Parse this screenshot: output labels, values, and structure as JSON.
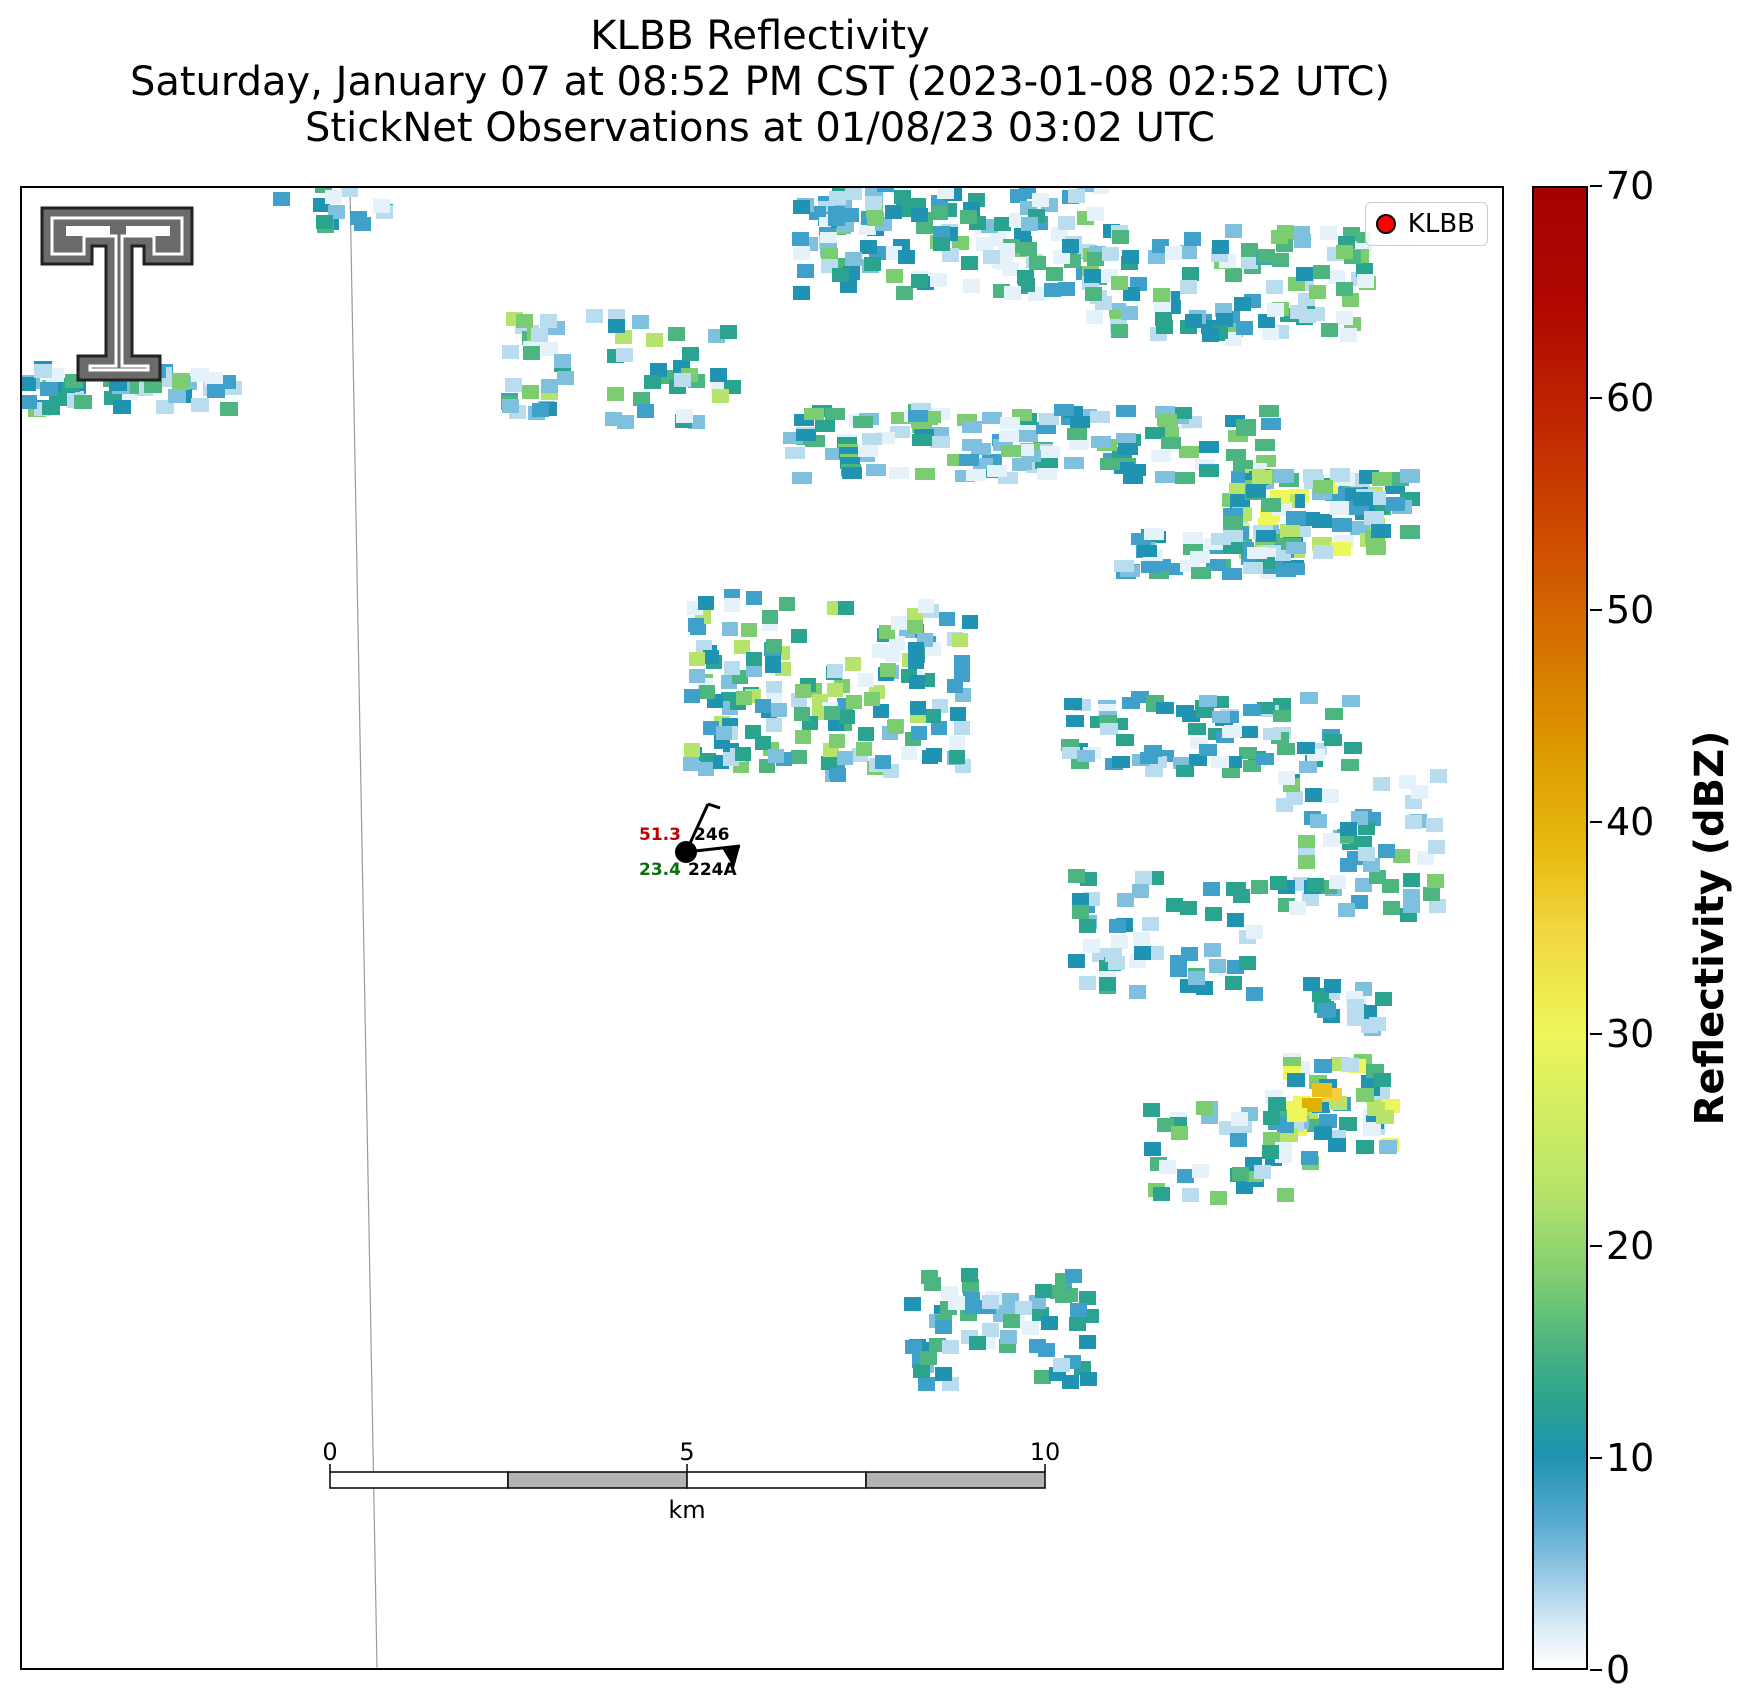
{
  "titles": {
    "line1": "KLBB Reflectivity",
    "line2": "Saturday, January 07 at 08:52 PM CST (2023-01-08 02:52 UTC)",
    "line3": "StickNet Observations at 01/08/23 03:02 UTC"
  },
  "legend": {
    "label": "KLBB",
    "marker_color": "#ff0000"
  },
  "colorbar": {
    "label": "Reflectivity (dBZ)",
    "min": 0,
    "max": 70,
    "ticks": [
      "0",
      "10",
      "20",
      "30",
      "40",
      "50",
      "60",
      "70"
    ]
  },
  "scalebar": {
    "labels": [
      "0",
      "5",
      "10"
    ],
    "unit": "km"
  },
  "station": {
    "id": "224A",
    "temperature": "51.3",
    "dewpoint": "23.4",
    "pressure": "246",
    "temperature_color": "#c00000",
    "dewpoint_color": "#0a6e0a"
  },
  "logo": {
    "description_icon": "texas-tech-double-t-logo-icon"
  }
}
